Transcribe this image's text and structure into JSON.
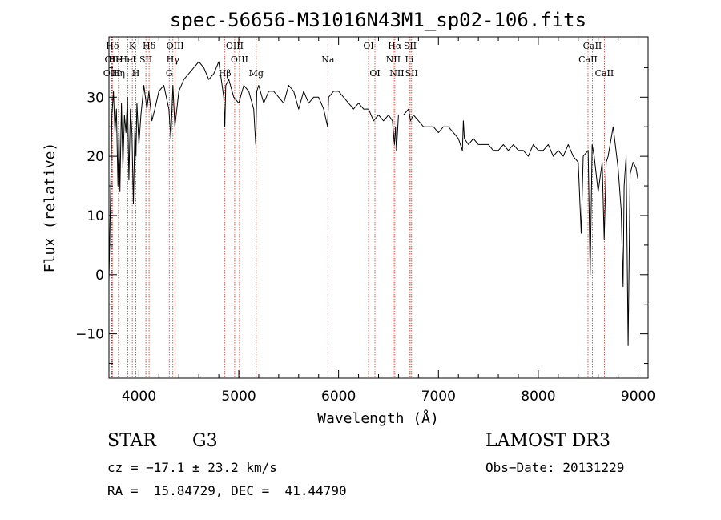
{
  "chart_data": {
    "type": "line",
    "title": "spec-56656-M31016N43M1_sp02-106.fits",
    "xlabel": "Wavelength (Å)",
    "ylabel": "Flux (relative)",
    "xlim": [
      3700,
      9100
    ],
    "ylim": [
      -17.5,
      40.2
    ],
    "xticks": [
      4000,
      5000,
      6000,
      7000,
      8000,
      9000
    ],
    "xtick_labels": [
      "4000",
      "5000",
      "6000",
      "7000",
      "8000",
      "9000"
    ],
    "yticks": [
      -10,
      0,
      10,
      20,
      30
    ],
    "ytick_labels": [
      "−10",
      "0",
      "10",
      "20",
      "30"
    ],
    "series": [
      {
        "name": "flux",
        "x": [
          3700,
          3720,
          3730,
          3745,
          3760,
          3775,
          3790,
          3800,
          3810,
          3825,
          3840,
          3855,
          3870,
          3885,
          3900,
          3915,
          3930,
          3945,
          3960,
          3970,
          3980,
          4000,
          4020,
          4050,
          4080,
          4100,
          4130,
          4160,
          4200,
          4250,
          4300,
          4320,
          4340,
          4360,
          4400,
          4450,
          4500,
          4550,
          4600,
          4650,
          4700,
          4750,
          4800,
          4850,
          4860,
          4870,
          4900,
          4950,
          5000,
          5050,
          5100,
          5150,
          5170,
          5180,
          5200,
          5250,
          5300,
          5350,
          5400,
          5450,
          5500,
          5550,
          5600,
          5650,
          5700,
          5750,
          5800,
          5850,
          5890,
          5900,
          5950,
          6000,
          6050,
          6100,
          6150,
          6200,
          6250,
          6300,
          6350,
          6400,
          6450,
          6500,
          6540,
          6560,
          6570,
          6580,
          6600,
          6650,
          6700,
          6720,
          6750,
          6800,
          6850,
          6900,
          6950,
          7000,
          7050,
          7100,
          7150,
          7200,
          7240,
          7250,
          7260,
          7300,
          7350,
          7400,
          7450,
          7500,
          7550,
          7600,
          7650,
          7700,
          7750,
          7800,
          7850,
          7900,
          7950,
          8000,
          8050,
          8100,
          8150,
          8200,
          8250,
          8300,
          8350,
          8400,
          8430,
          8450,
          8500,
          8520,
          8540,
          8560,
          8600,
          8640,
          8660,
          8680,
          8700,
          8750,
          8800,
          8830,
          8850,
          8860,
          8880,
          8900,
          8920,
          8950,
          8980,
          9000
        ],
        "y": [
          -1,
          17,
          27,
          31,
          24,
          28,
          15,
          25,
          14,
          29,
          18,
          27,
          24,
          30,
          16,
          28,
          24,
          12,
          25,
          20,
          29,
          22,
          27,
          32,
          28,
          31,
          26,
          28,
          31,
          32,
          28,
          23,
          32,
          25,
          31,
          33,
          34,
          35,
          36,
          35,
          33,
          34,
          36,
          30,
          25,
          32,
          33,
          30,
          29,
          32,
          31,
          28,
          22,
          31,
          32,
          29,
          31,
          31,
          30,
          29,
          32,
          31,
          28,
          31,
          29,
          30,
          30,
          28,
          25,
          30,
          31,
          31,
          30,
          29,
          28,
          29,
          28,
          28,
          26,
          27,
          26,
          27,
          26,
          22,
          25,
          21,
          27,
          27,
          28,
          26,
          27,
          26,
          25,
          25,
          25,
          24,
          25,
          25,
          24,
          23,
          21,
          26,
          23,
          22,
          23,
          22,
          22,
          22,
          21,
          21,
          22,
          21,
          22,
          21,
          21,
          20,
          22,
          21,
          21,
          22,
          20,
          21,
          20,
          22,
          20,
          19,
          7,
          20,
          21,
          0,
          22,
          20,
          14,
          19,
          6,
          19,
          20,
          25,
          18,
          11,
          -2,
          15,
          20,
          -12,
          17,
          19,
          18,
          16
        ],
        "color": "#000000"
      }
    ],
    "lines": [
      {
        "label": "Hδ",
        "x": 3735,
        "row": 1
      },
      {
        "label": "OII",
        "x": 3727,
        "row": 2
      },
      {
        "label": "OIII",
        "x": 3730,
        "row": 3
      },
      {
        "label": "He",
        "x": 3760,
        "row": 2
      },
      {
        "label": "Hη",
        "x": 3795,
        "row": 3
      },
      {
        "label": "K",
        "x": 3934,
        "row": 1
      },
      {
        "label": "H",
        "x": 3969,
        "row": 3
      },
      {
        "label": "HeI",
        "x": 3889,
        "row": 2
      },
      {
        "label": "SII",
        "x": 4070,
        "row": 2
      },
      {
        "label": "Hδ",
        "x": 4102,
        "row": 1
      },
      {
        "label": "OIII",
        "x": 4363,
        "row": 1
      },
      {
        "label": "Hγ",
        "x": 4340,
        "row": 2
      },
      {
        "label": "G",
        "x": 4304,
        "row": 3
      },
      {
        "label": "OIII",
        "x": 4959,
        "row": 1
      },
      {
        "label": "OIII",
        "x": 5007,
        "row": 2
      },
      {
        "label": "Hβ",
        "x": 4861,
        "row": 3
      },
      {
        "label": "Mg",
        "x": 5175,
        "row": 3
      },
      {
        "label": "Na",
        "x": 5893,
        "row": 2
      },
      {
        "label": "OI",
        "x": 6300,
        "row": 1
      },
      {
        "label": "OI",
        "x": 6364,
        "row": 3
      },
      {
        "label": "Hα",
        "x": 6563,
        "row": 1
      },
      {
        "label": "NII",
        "x": 6548,
        "row": 2
      },
      {
        "label": "NII",
        "x": 6584,
        "row": 3
      },
      {
        "label": "SII",
        "x": 6717,
        "row": 1
      },
      {
        "label": "Li",
        "x": 6708,
        "row": 2
      },
      {
        "label": "SII",
        "x": 6731,
        "row": 3
      },
      {
        "label": "CaII",
        "x": 8542,
        "row": 1
      },
      {
        "label": "CaII",
        "x": 8498,
        "row": 2
      },
      {
        "label": "CaII",
        "x": 8662,
        "row": 3
      }
    ]
  },
  "info": {
    "class_label": "STAR",
    "subclass": "G3",
    "survey": "LAMOST DR3",
    "cz": "cz = −17.1 ± 23.2 km/s",
    "obs_date": "Obs−Date: 20131229",
    "coords": "RA =  15.84729, DEC =  41.44790"
  }
}
